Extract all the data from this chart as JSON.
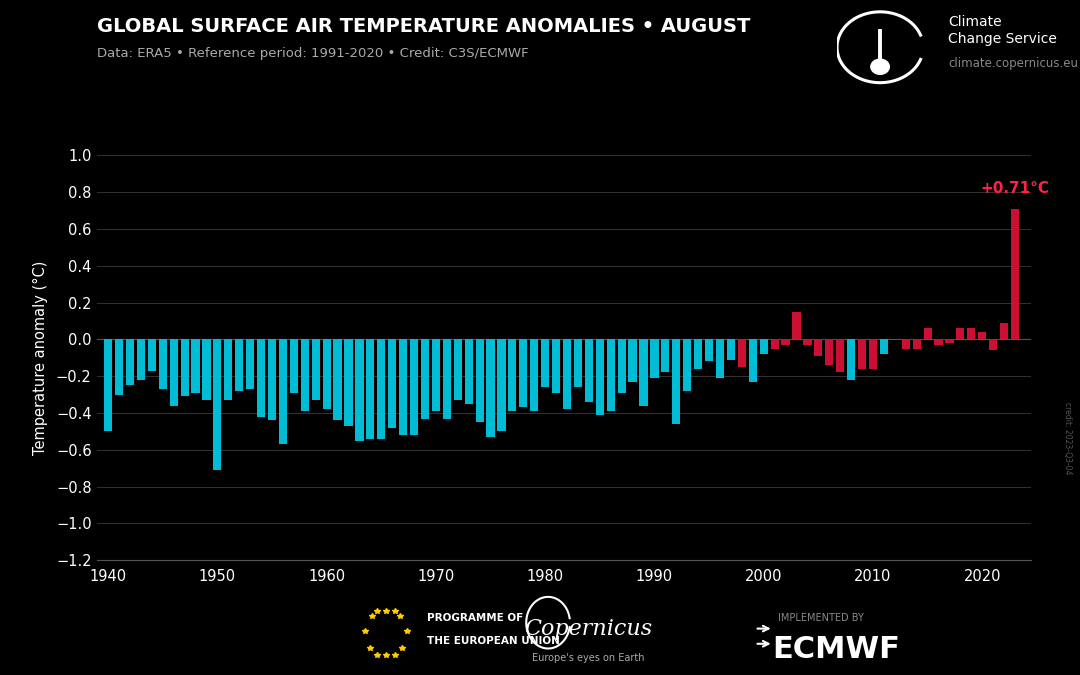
{
  "title": "GLOBAL SURFACE AIR TEMPERATURE ANOMALIES • AUGUST",
  "subtitle": "Data: ERA5 • Reference period: 1991-2020 • Credit: C3S/ECMWF",
  "ylabel": "Temperature anomaly (°C)",
  "credit_side": "credit: 2023-Q3-04",
  "logo_text1": "Climate",
  "logo_text2": "Change Service",
  "logo_url": "climate.copernicus.eu",
  "annotation": "+0.71°C",
  "background_color": "#000000",
  "text_color": "#ffffff",
  "bar_color_cool": "#00bcd4",
  "bar_color_warm": "#cc1033",
  "annotation_color": "#ff2244",
  "ylim": [
    -1.2,
    1.0
  ],
  "xlim": [
    1939.0,
    2024.5
  ],
  "years": [
    1940,
    1941,
    1942,
    1943,
    1944,
    1945,
    1946,
    1947,
    1948,
    1949,
    1950,
    1951,
    1952,
    1953,
    1954,
    1955,
    1956,
    1957,
    1958,
    1959,
    1960,
    1961,
    1962,
    1963,
    1964,
    1965,
    1966,
    1967,
    1968,
    1969,
    1970,
    1971,
    1972,
    1973,
    1974,
    1975,
    1976,
    1977,
    1978,
    1979,
    1980,
    1981,
    1982,
    1983,
    1984,
    1985,
    1986,
    1987,
    1988,
    1989,
    1990,
    1991,
    1992,
    1993,
    1994,
    1995,
    1996,
    1997,
    1998,
    1999,
    2000,
    2001,
    2002,
    2003,
    2004,
    2005,
    2006,
    2007,
    2008,
    2009,
    2010,
    2011,
    2012,
    2013,
    2014,
    2015,
    2016,
    2017,
    2018,
    2019,
    2020,
    2021,
    2022,
    2023
  ],
  "values": [
    -0.5,
    -0.3,
    -0.25,
    -0.22,
    -0.17,
    -0.27,
    -0.36,
    -0.31,
    -0.29,
    -0.33,
    -0.71,
    -0.33,
    -0.28,
    -0.27,
    -0.42,
    -0.44,
    -0.57,
    -0.29,
    -0.39,
    -0.33,
    -0.38,
    -0.44,
    -0.47,
    -0.55,
    -0.54,
    -0.54,
    -0.48,
    -0.52,
    -0.52,
    -0.43,
    -0.39,
    -0.43,
    -0.33,
    -0.35,
    -0.45,
    -0.53,
    -0.5,
    -0.39,
    -0.37,
    -0.39,
    -0.26,
    -0.29,
    -0.38,
    -0.26,
    -0.34,
    -0.41,
    -0.39,
    -0.29,
    -0.23,
    -0.36,
    -0.21,
    -0.18,
    -0.46,
    -0.28,
    -0.16,
    -0.12,
    -0.21,
    -0.11,
    -0.15,
    -0.23,
    -0.08,
    -0.05,
    -0.03,
    0.15,
    -0.03,
    -0.09,
    -0.14,
    -0.18,
    -0.22,
    -0.16,
    -0.16,
    -0.08,
    0.0,
    -0.05,
    -0.05,
    0.06,
    -0.03,
    -0.02,
    0.06,
    0.06,
    0.04,
    -0.06,
    0.09,
    0.71
  ],
  "bar_colors_warm_from_year": 1998,
  "warm_years": [
    1998,
    2001,
    2002,
    2003,
    2004,
    2005,
    2006,
    2007,
    2009,
    2010,
    2012,
    2013,
    2014,
    2015,
    2016,
    2017,
    2018,
    2019,
    2020,
    2021,
    2022,
    2023
  ],
  "yticks": [
    -1.2,
    -1.0,
    -0.8,
    -0.6,
    -0.4,
    -0.2,
    0.0,
    0.2,
    0.4,
    0.6,
    0.8,
    1.0
  ],
  "xticks": [
    1940,
    1950,
    1960,
    1970,
    1980,
    1990,
    2000,
    2010,
    2020
  ],
  "grid_color": "#333333",
  "spine_color": "#555555"
}
